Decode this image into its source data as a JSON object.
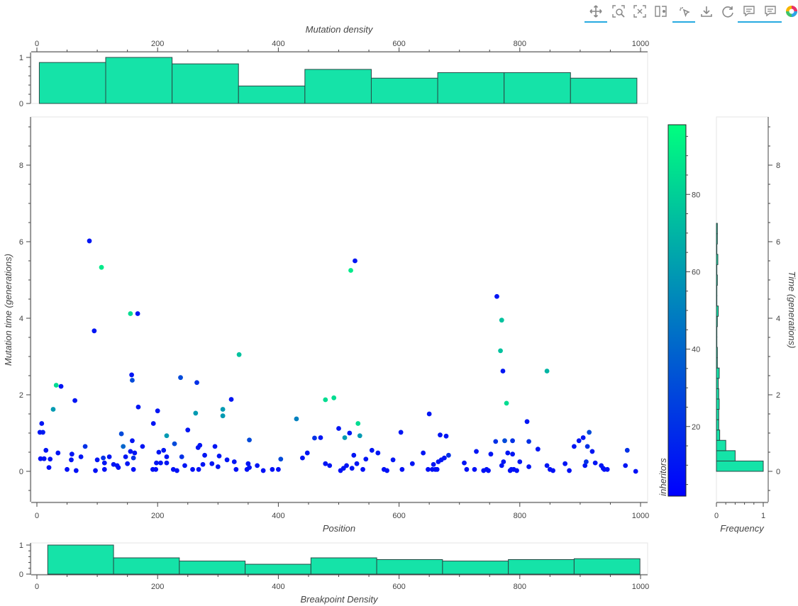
{
  "toolbar": {
    "tools": [
      {
        "name": "pan-tool-icon",
        "active": true
      },
      {
        "name": "box-zoom-tool-icon",
        "active": false
      },
      {
        "name": "reset-zoom-tool-icon",
        "active": false
      },
      {
        "name": "hover-tool-icon",
        "active": false
      },
      {
        "name": "tap-tool-icon",
        "active": true
      },
      {
        "name": "save-tool-icon",
        "active": false
      },
      {
        "name": "reset-tool-icon",
        "active": false
      },
      {
        "name": "comment-tool-icon-1",
        "active": true
      },
      {
        "name": "comment-tool-icon-2",
        "active": true
      },
      {
        "name": "bokeh-logo-icon",
        "active": false
      }
    ]
  },
  "chart_data": [
    {
      "id": "top-hist",
      "type": "bar",
      "title": "",
      "xlabel": "Mutation density",
      "ylabel": "",
      "xlim": [
        -5,
        1010
      ],
      "ylim": [
        0,
        1.05
      ],
      "xticks": [
        0,
        200,
        400,
        600,
        800,
        1000
      ],
      "yticks": [
        0,
        1
      ],
      "fill": "#15e3a8",
      "bins": [
        {
          "x0": 4,
          "x1": 114,
          "value": 0.89
        },
        {
          "x0": 114,
          "x1": 224,
          "value": 1.0
        },
        {
          "x0": 224,
          "x1": 334,
          "value": 0.86
        },
        {
          "x0": 334,
          "x1": 444,
          "value": 0.38
        },
        {
          "x0": 444,
          "x1": 554,
          "value": 0.74
        },
        {
          "x0": 554,
          "x1": 664,
          "value": 0.55
        },
        {
          "x0": 664,
          "x1": 774,
          "value": 0.67
        },
        {
          "x0": 774,
          "x1": 884,
          "value": 0.67
        },
        {
          "x0": 884,
          "x1": 994,
          "value": 0.55
        }
      ]
    },
    {
      "id": "scatter",
      "type": "scatter",
      "title": "",
      "xlabel": "Position",
      "ylabel": "Mutation time (generations)",
      "xlim": [
        -10,
        1010
      ],
      "ylim": [
        -0.8,
        9.2
      ],
      "xticks": [
        0,
        200,
        400,
        600,
        800,
        1000
      ],
      "yticks": [
        0,
        2,
        4,
        6,
        8
      ],
      "color_scale": {
        "field": "inheritors",
        "low": 2,
        "high": 98,
        "low_color": "#0000ff",
        "high_color": "#00ff7f"
      },
      "points": [
        [
          5,
          1.02,
          10
        ],
        [
          8,
          1.25,
          10
        ],
        [
          6,
          0.33,
          8
        ],
        [
          10,
          1.02,
          12
        ],
        [
          12,
          0.33,
          10
        ],
        [
          15,
          0.55,
          10
        ],
        [
          20,
          0.1,
          8
        ],
        [
          22,
          0.32,
          10
        ],
        [
          27,
          1.62,
          60
        ],
        [
          32,
          2.25,
          85
        ],
        [
          35,
          0.48,
          10
        ],
        [
          40,
          2.22,
          10
        ],
        [
          50,
          0.05,
          8
        ],
        [
          57,
          0.3,
          10
        ],
        [
          58,
          0.45,
          10
        ],
        [
          63,
          1.85,
          10
        ],
        [
          65,
          0.02,
          8
        ],
        [
          73,
          0.38,
          10
        ],
        [
          80,
          0.65,
          20
        ],
        [
          87,
          6.02,
          10
        ],
        [
          95,
          3.67,
          10
        ],
        [
          97,
          0.02,
          8
        ],
        [
          100,
          0.3,
          10
        ],
        [
          107,
          5.33,
          90
        ],
        [
          110,
          0.35,
          20
        ],
        [
          112,
          0.22,
          10
        ],
        [
          112,
          0.05,
          8
        ],
        [
          120,
          0.38,
          10
        ],
        [
          127,
          0.18,
          10
        ],
        [
          133,
          0.15,
          10
        ],
        [
          135,
          0.1,
          8
        ],
        [
          140,
          0.98,
          30
        ],
        [
          143,
          0.65,
          40
        ],
        [
          147,
          0.38,
          10
        ],
        [
          150,
          0.2,
          10
        ],
        [
          155,
          0.52,
          10
        ],
        [
          155,
          4.12,
          85
        ],
        [
          157,
          2.52,
          10
        ],
        [
          158,
          2.38,
          30
        ],
        [
          158,
          0.8,
          10
        ],
        [
          160,
          0.35,
          20
        ],
        [
          160,
          0.05,
          8
        ],
        [
          162,
          0.48,
          10
        ],
        [
          167,
          4.12,
          10
        ],
        [
          168,
          1.68,
          10
        ],
        [
          175,
          0.65,
          10
        ],
        [
          192,
          0.05,
          8
        ],
        [
          193,
          1.25,
          10
        ],
        [
          197,
          0.05,
          8
        ],
        [
          198,
          0.22,
          10
        ],
        [
          200,
          1.58,
          10
        ],
        [
          202,
          0.5,
          10
        ],
        [
          205,
          0.22,
          10
        ],
        [
          210,
          0.55,
          10
        ],
        [
          215,
          0.22,
          10
        ],
        [
          215,
          0.38,
          10
        ],
        [
          215,
          0.93,
          60
        ],
        [
          226,
          0.05,
          8
        ],
        [
          228,
          0.72,
          30
        ],
        [
          232,
          0.02,
          8
        ],
        [
          238,
          2.45,
          30
        ],
        [
          240,
          0.38,
          20
        ],
        [
          245,
          0.15,
          10
        ],
        [
          250,
          1.08,
          10
        ],
        [
          258,
          0.05,
          8
        ],
        [
          263,
          1.52,
          60
        ],
        [
          265,
          2.32,
          20
        ],
        [
          267,
          0.62,
          10
        ],
        [
          268,
          0.05,
          8
        ],
        [
          270,
          0.68,
          10
        ],
        [
          275,
          0.18,
          10
        ],
        [
          278,
          0.42,
          10
        ],
        [
          290,
          0.2,
          10
        ],
        [
          295,
          0.65,
          10
        ],
        [
          300,
          0.12,
          10
        ],
        [
          302,
          0.4,
          10
        ],
        [
          308,
          1.62,
          60
        ],
        [
          308,
          1.45,
          60
        ],
        [
          315,
          0.3,
          10
        ],
        [
          322,
          1.88,
          10
        ],
        [
          327,
          0.25,
          10
        ],
        [
          330,
          0.05,
          8
        ],
        [
          335,
          3.05,
          75
        ],
        [
          348,
          0.05,
          8
        ],
        [
          350,
          0.2,
          10
        ],
        [
          352,
          0.82,
          30
        ],
        [
          352,
          0.1,
          10
        ],
        [
          365,
          0.15,
          10
        ],
        [
          375,
          0.02,
          8
        ],
        [
          390,
          0.05,
          8
        ],
        [
          400,
          0.05,
          8
        ],
        [
          404,
          0.32,
          30
        ],
        [
          430,
          1.37,
          50
        ],
        [
          440,
          0.35,
          10
        ],
        [
          448,
          0.48,
          10
        ],
        [
          460,
          0.87,
          20
        ],
        [
          470,
          0.88,
          10
        ],
        [
          478,
          1.87,
          85
        ],
        [
          478,
          0.2,
          10
        ],
        [
          485,
          0.15,
          10
        ],
        [
          492,
          1.92,
          85
        ],
        [
          500,
          1.12,
          10
        ],
        [
          503,
          0.02,
          8
        ],
        [
          508,
          0.08,
          10
        ],
        [
          510,
          0.88,
          60
        ],
        [
          513,
          0.15,
          10
        ],
        [
          518,
          1.0,
          10
        ],
        [
          520,
          5.25,
          90
        ],
        [
          522,
          0.08,
          10
        ],
        [
          525,
          0.42,
          10
        ],
        [
          527,
          5.5,
          10
        ],
        [
          530,
          0.2,
          10
        ],
        [
          532,
          1.25,
          85
        ],
        [
          535,
          0.93,
          60
        ],
        [
          540,
          0.05,
          8
        ],
        [
          545,
          0.32,
          10
        ],
        [
          555,
          0.55,
          10
        ],
        [
          565,
          0.48,
          10
        ],
        [
          575,
          0.05,
          8
        ],
        [
          580,
          0.02,
          8
        ],
        [
          590,
          0.3,
          10
        ],
        [
          603,
          1.02,
          10
        ],
        [
          605,
          0.05,
          8
        ],
        [
          622,
          0.2,
          10
        ],
        [
          640,
          0.48,
          10
        ],
        [
          648,
          0.05,
          8
        ],
        [
          650,
          1.5,
          10
        ],
        [
          655,
          0.05,
          8
        ],
        [
          657,
          0.18,
          10
        ],
        [
          660,
          0.05,
          8
        ],
        [
          663,
          0.05,
          8
        ],
        [
          665,
          0.25,
          10
        ],
        [
          668,
          0.95,
          10
        ],
        [
          670,
          0.3,
          10
        ],
        [
          675,
          0.35,
          10
        ],
        [
          678,
          0.92,
          10
        ],
        [
          682,
          0.42,
          20
        ],
        [
          708,
          0.22,
          10
        ],
        [
          712,
          0.05,
          8
        ],
        [
          725,
          0.05,
          8
        ],
        [
          728,
          0.52,
          10
        ],
        [
          740,
          0.02,
          8
        ],
        [
          745,
          0.05,
          8
        ],
        [
          748,
          0.02,
          8
        ],
        [
          752,
          0.45,
          10
        ],
        [
          760,
          0.78,
          20
        ],
        [
          762,
          4.57,
          10
        ],
        [
          770,
          3.95,
          75
        ],
        [
          768,
          3.15,
          75
        ],
        [
          770,
          0.15,
          10
        ],
        [
          772,
          2.62,
          10
        ],
        [
          773,
          0.25,
          10
        ],
        [
          775,
          0.8,
          30
        ],
        [
          778,
          1.78,
          85
        ],
        [
          780,
          0.48,
          10
        ],
        [
          784,
          0.02,
          8
        ],
        [
          786,
          0.05,
          8
        ],
        [
          788,
          0.8,
          20
        ],
        [
          788,
          0.45,
          10
        ],
        [
          790,
          0.05,
          8
        ],
        [
          795,
          0.02,
          8
        ],
        [
          800,
          0.25,
          10
        ],
        [
          812,
          1.3,
          10
        ],
        [
          815,
          0.78,
          20
        ],
        [
          815,
          0.12,
          10
        ],
        [
          830,
          0.58,
          10
        ],
        [
          845,
          2.62,
          70
        ],
        [
          845,
          0.15,
          10
        ],
        [
          850,
          0.05,
          8
        ],
        [
          855,
          0.02,
          8
        ],
        [
          875,
          0.2,
          10
        ],
        [
          882,
          0.02,
          8
        ],
        [
          890,
          0.65,
          10
        ],
        [
          898,
          0.8,
          10
        ],
        [
          905,
          0.88,
          10
        ],
        [
          908,
          0.15,
          10
        ],
        [
          910,
          0.25,
          20
        ],
        [
          912,
          0.65,
          20
        ],
        [
          915,
          1.02,
          30
        ],
        [
          920,
          0.52,
          10
        ],
        [
          925,
          0.22,
          10
        ],
        [
          935,
          0.15,
          10
        ],
        [
          938,
          0.08,
          10
        ],
        [
          940,
          0.05,
          8
        ],
        [
          945,
          0.05,
          8
        ],
        [
          975,
          0.15,
          10
        ],
        [
          978,
          0.55,
          20
        ],
        [
          992,
          0.0,
          8
        ]
      ]
    },
    {
      "id": "colorbar",
      "type": "heatmap",
      "title": "inheritors",
      "range": [
        2,
        98
      ],
      "ticks": [
        20,
        40,
        60,
        80
      ],
      "low_color": "#0000ff",
      "high_color": "#00ff7f"
    },
    {
      "id": "right-hist",
      "type": "bar",
      "orientation": "horizontal",
      "title": "",
      "xlabel": "Frequency",
      "ylabel": "Time (generations)",
      "xlim": [
        0,
        1.05
      ],
      "ylim": [
        -0.8,
        9.2
      ],
      "xticks": [
        0,
        1
      ],
      "yticks": [
        0,
        2,
        4,
        6,
        8
      ],
      "fill": "#15e3a8",
      "bins": [
        {
          "y0": 0.0,
          "y1": 0.27,
          "value": 1.0
        },
        {
          "y0": 0.27,
          "y1": 0.54,
          "value": 0.4
        },
        {
          "y0": 0.54,
          "y1": 0.81,
          "value": 0.2
        },
        {
          "y0": 0.81,
          "y1": 1.08,
          "value": 0.07
        },
        {
          "y0": 1.08,
          "y1": 1.35,
          "value": 0.05
        },
        {
          "y0": 1.35,
          "y1": 1.62,
          "value": 0.05
        },
        {
          "y0": 1.62,
          "y1": 1.89,
          "value": 0.06
        },
        {
          "y0": 1.89,
          "y1": 2.16,
          "value": 0.05
        },
        {
          "y0": 2.16,
          "y1": 2.43,
          "value": 0.04
        },
        {
          "y0": 2.43,
          "y1": 2.7,
          "value": 0.06
        },
        {
          "y0": 2.7,
          "y1": 2.97,
          "value": 0.02
        },
        {
          "y0": 2.97,
          "y1": 3.24,
          "value": 0.02
        },
        {
          "y0": 3.24,
          "y1": 3.51,
          "value": 0.01
        },
        {
          "y0": 3.51,
          "y1": 3.78,
          "value": 0.01
        },
        {
          "y0": 3.78,
          "y1": 4.05,
          "value": 0.02
        },
        {
          "y0": 4.05,
          "y1": 4.32,
          "value": 0.04
        },
        {
          "y0": 4.32,
          "y1": 4.59,
          "value": 0.01
        },
        {
          "y0": 4.59,
          "y1": 4.86,
          "value": 0.01
        },
        {
          "y0": 4.86,
          "y1": 5.13,
          "value": 0.02
        },
        {
          "y0": 5.13,
          "y1": 5.4,
          "value": 0.01
        },
        {
          "y0": 5.4,
          "y1": 5.67,
          "value": 0.03
        },
        {
          "y0": 5.67,
          "y1": 5.94,
          "value": 0.01
        },
        {
          "y0": 5.94,
          "y1": 6.21,
          "value": 0.02
        },
        {
          "y0": 6.21,
          "y1": 6.48,
          "value": 0.02
        }
      ]
    },
    {
      "id": "bottom-hist",
      "type": "bar",
      "title": "",
      "xlabel": "Breakpoint Density",
      "ylabel": "",
      "xlim": [
        -5,
        1010
      ],
      "ylim": [
        0,
        1.05
      ],
      "xticks": [
        0,
        200,
        400,
        600,
        800,
        1000
      ],
      "yticks": [
        0,
        1
      ],
      "fill": "#15e3a8",
      "bins": [
        {
          "x0": 18,
          "x1": 127,
          "value": 1.0
        },
        {
          "x0": 127,
          "x1": 236,
          "value": 0.56
        },
        {
          "x0": 236,
          "x1": 345,
          "value": 0.45
        },
        {
          "x0": 345,
          "x1": 454,
          "value": 0.34
        },
        {
          "x0": 454,
          "x1": 563,
          "value": 0.56
        },
        {
          "x0": 563,
          "x1": 672,
          "value": 0.5
        },
        {
          "x0": 672,
          "x1": 781,
          "value": 0.45
        },
        {
          "x0": 781,
          "x1": 890,
          "value": 0.5
        },
        {
          "x0": 890,
          "x1": 999,
          "value": 0.53
        }
      ]
    }
  ]
}
